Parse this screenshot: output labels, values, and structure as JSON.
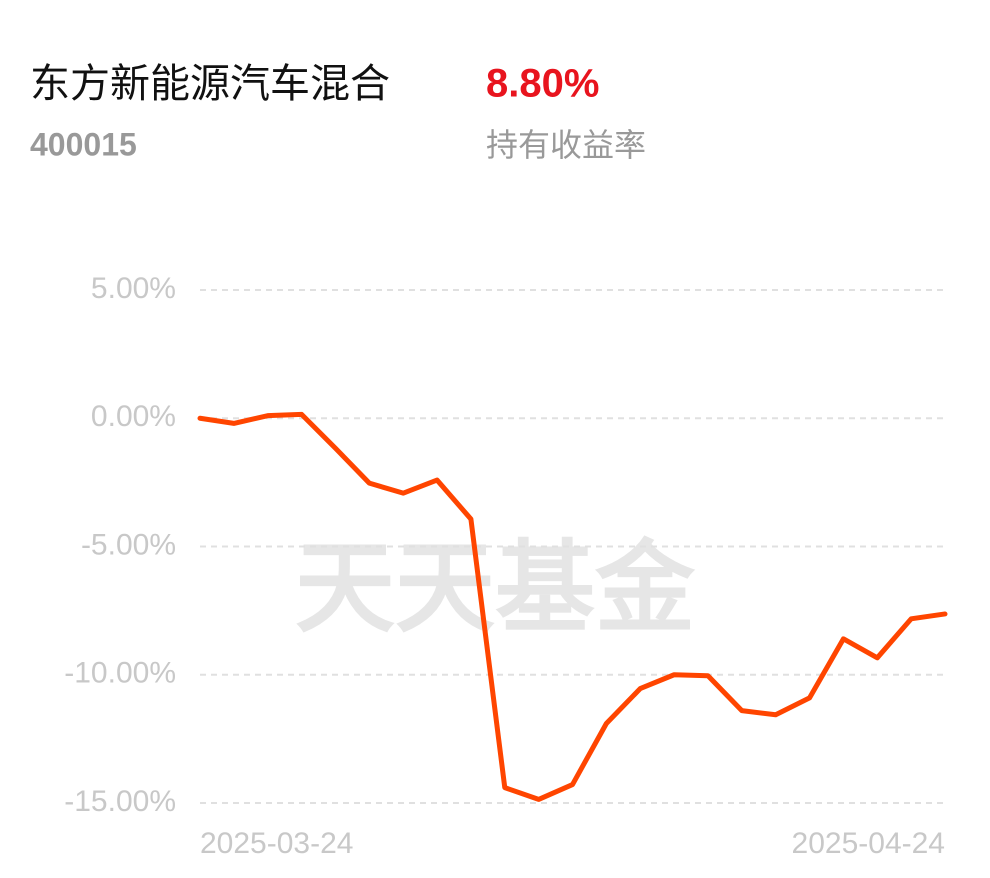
{
  "header": {
    "fund_name": "东方新能源汽车混合",
    "fund_code": "400015",
    "return_value": "8.80%",
    "return_label": "持有收益率"
  },
  "chart_data": {
    "type": "line",
    "watermark": "天天基金",
    "categories": [
      "2025-03-24",
      null,
      null,
      null,
      null,
      null,
      null,
      null,
      null,
      null,
      null,
      null,
      null,
      null,
      null,
      null,
      null,
      null,
      null,
      null,
      null,
      null,
      "2025-04-24"
    ],
    "values": [
      0.0,
      -0.2,
      0.1,
      0.15,
      -1.17,
      -2.53,
      -2.92,
      -2.41,
      -3.93,
      -14.4,
      -14.86,
      -14.28,
      -11.9,
      -10.54,
      -10.0,
      -10.04,
      -11.4,
      -11.56,
      -10.9,
      -8.6,
      -9.34,
      -7.82,
      -7.63
    ],
    "color": "#ff4500",
    "ylim": [
      -15,
      5
    ],
    "yticks": [
      {
        "value": 5,
        "label": "5.00%"
      },
      {
        "value": 0,
        "label": "0.00%"
      },
      {
        "value": -5,
        "label": "-5.00%"
      },
      {
        "value": -10,
        "label": "-10.00%"
      },
      {
        "value": -15,
        "label": "-15.00%"
      }
    ],
    "grid": true
  }
}
